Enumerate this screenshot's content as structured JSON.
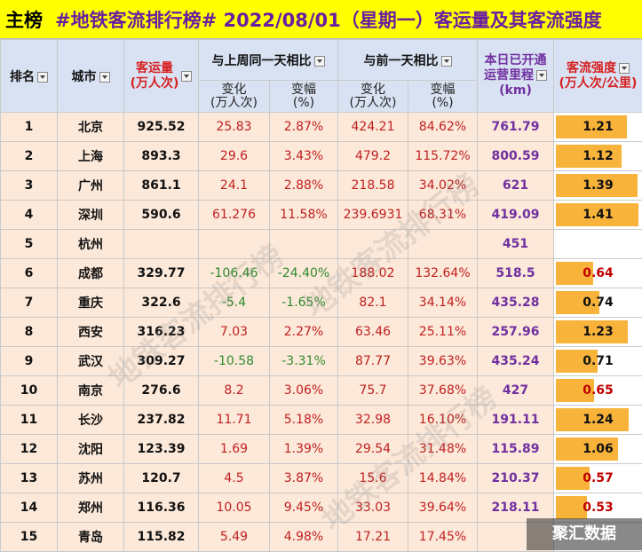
{
  "title": {
    "prefix": "主榜",
    "main": "#地铁客流排行榜# 2022/08/01（星期一）客运量及其客流强度"
  },
  "headers": {
    "rank": "排名",
    "city": "城市",
    "volume_l1": "客运量",
    "volume_l2": "(万人次)",
    "week_group": "与上周同一天相比",
    "prev_group": "与前一天相比",
    "change_l1": "变化",
    "change_l2": "(万人次)",
    "pct_l1": "变幅",
    "pct_l2": "(%)",
    "mileage_l1": "本日已开通",
    "mileage_l2": "运营里程",
    "mileage_l3": "(km)",
    "intensity_l1": "客流强度",
    "intensity_l2": "(万人次/公里)"
  },
  "rows": [
    {
      "rank": "1",
      "city": "北京",
      "volume": "925.52",
      "wk_change": "25.83",
      "wk_pct": "2.87%",
      "pd_change": "424.21",
      "pd_pct": "84.62%",
      "mileage": "761.79",
      "intensity": "1.21"
    },
    {
      "rank": "2",
      "city": "上海",
      "volume": "893.3",
      "wk_change": "29.6",
      "wk_pct": "3.43%",
      "pd_change": "479.2",
      "pd_pct": "115.72%",
      "mileage": "800.59",
      "intensity": "1.12"
    },
    {
      "rank": "3",
      "city": "广州",
      "volume": "861.1",
      "wk_change": "24.1",
      "wk_pct": "2.88%",
      "pd_change": "218.58",
      "pd_pct": "34.02%",
      "mileage": "621",
      "intensity": "1.39"
    },
    {
      "rank": "4",
      "city": "深圳",
      "volume": "590.6",
      "wk_change": "61.276",
      "wk_pct": "11.58%",
      "pd_change": "239.6931",
      "pd_pct": "68.31%",
      "mileage": "419.09",
      "intensity": "1.41"
    },
    {
      "rank": "5",
      "city": "杭州",
      "volume": "",
      "wk_change": "",
      "wk_pct": "",
      "pd_change": "",
      "pd_pct": "",
      "mileage": "451",
      "intensity": ""
    },
    {
      "rank": "6",
      "city": "成都",
      "volume": "329.77",
      "wk_change": "-106.46",
      "wk_pct": "-24.40%",
      "pd_change": "188.02",
      "pd_pct": "132.64%",
      "mileage": "518.5",
      "intensity": "0.64"
    },
    {
      "rank": "7",
      "city": "重庆",
      "volume": "322.6",
      "wk_change": "-5.4",
      "wk_pct": "-1.65%",
      "pd_change": "82.1",
      "pd_pct": "34.14%",
      "mileage": "435.28",
      "intensity": "0.74"
    },
    {
      "rank": "8",
      "city": "西安",
      "volume": "316.23",
      "wk_change": "7.03",
      "wk_pct": "2.27%",
      "pd_change": "63.46",
      "pd_pct": "25.11%",
      "mileage": "257.96",
      "intensity": "1.23"
    },
    {
      "rank": "9",
      "city": "武汉",
      "volume": "309.27",
      "wk_change": "-10.58",
      "wk_pct": "-3.31%",
      "pd_change": "87.77",
      "pd_pct": "39.63%",
      "mileage": "435.24",
      "intensity": "0.71"
    },
    {
      "rank": "10",
      "city": "南京",
      "volume": "276.6",
      "wk_change": "8.2",
      "wk_pct": "3.06%",
      "pd_change": "75.7",
      "pd_pct": "37.68%",
      "mileage": "427",
      "intensity": "0.65"
    },
    {
      "rank": "11",
      "city": "长沙",
      "volume": "237.82",
      "wk_change": "11.71",
      "wk_pct": "5.18%",
      "pd_change": "32.98",
      "pd_pct": "16.10%",
      "mileage": "191.11",
      "intensity": "1.24"
    },
    {
      "rank": "12",
      "city": "沈阳",
      "volume": "123.39",
      "wk_change": "1.69",
      "wk_pct": "1.39%",
      "pd_change": "29.54",
      "pd_pct": "31.48%",
      "mileage": "115.89",
      "intensity": "1.06"
    },
    {
      "rank": "13",
      "city": "苏州",
      "volume": "120.7",
      "wk_change": "4.5",
      "wk_pct": "3.87%",
      "pd_change": "15.6",
      "pd_pct": "14.84%",
      "mileage": "210.37",
      "intensity": "0.57"
    },
    {
      "rank": "14",
      "city": "郑州",
      "volume": "116.36",
      "wk_change": "10.05",
      "wk_pct": "9.45%",
      "pd_change": "33.03",
      "pd_pct": "39.64%",
      "mileage": "218.11",
      "intensity": "0.53"
    },
    {
      "rank": "15",
      "city": "青岛",
      "volume": "115.82",
      "wk_change": "5.49",
      "wk_pct": "4.98%",
      "pd_change": "17.21",
      "pd_pct": "17.45%",
      "mileage": "",
      "intensity": ""
    }
  ],
  "intensity_scale_max": 1.45,
  "watermark": "地铁客流排行榜",
  "brand": "聚汇数据",
  "colors": {
    "title_bg": "#ffff00",
    "title_text": "#6a1fa0",
    "row_bg": "#fde9d9",
    "header_bg": "#d9e2f3",
    "positive": "#c02020",
    "negative": "#2e8b2e",
    "mileage": "#7030a0",
    "intensity_bar": "#f8b33a"
  }
}
